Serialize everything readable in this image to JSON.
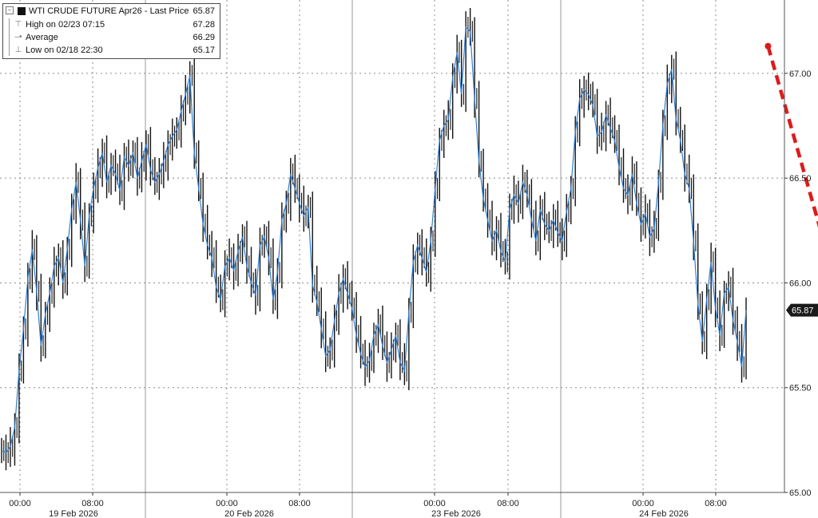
{
  "legend": {
    "title": "WTI CRUDE FUTURE Apr26 - Last Price",
    "last": "65.87",
    "rows": [
      {
        "label": "High on 02/23 07:15",
        "value": "67.28",
        "icon": "high-marker-icon"
      },
      {
        "label": "Average",
        "value": "66.29",
        "icon": "average-marker-icon"
      },
      {
        "label": "Low on 02/18 22:30",
        "value": "65.17",
        "icon": "low-marker-icon"
      }
    ]
  },
  "colors": {
    "candle": "#111111",
    "line": "#2e7fd6",
    "arrow": "#dd1b1b",
    "grid": "#8c8c8c",
    "label_bg": "#1a1a1a"
  },
  "chart_data": {
    "type": "line",
    "title": "WTI CRUDE FUTURE Apr26 - Last Price",
    "ylim": [
      65.0,
      67.35
    ],
    "yticks": [
      65.0,
      65.5,
      66.0,
      66.5,
      67.0
    ],
    "ytick_labels": [
      "65.00",
      "65.50",
      "66.00",
      "66.50",
      "67.00"
    ],
    "last_price_label": "65.87",
    "x_time_labels": [
      "00:00",
      "08:00",
      "00:00",
      "08:00",
      "00:00",
      "08:00",
      "00:00",
      "08:00"
    ],
    "x_date_labels": [
      "19 Feb 2026",
      "20 Feb 2026",
      "23 Feb 2026",
      "24 Feb 2026"
    ],
    "series": [
      {
        "values": [
          65.2,
          65.19,
          65.22,
          65.31,
          65.58,
          65.78,
          66.02,
          66.16,
          65.96,
          65.7,
          65.85,
          65.95,
          66.08,
          66.12,
          66.0,
          66.16,
          66.35,
          66.48,
          66.3,
          66.08,
          66.32,
          66.45,
          66.55,
          66.62,
          66.48,
          66.56,
          66.52,
          66.44,
          66.6,
          66.56,
          66.62,
          66.5,
          66.58,
          66.66,
          66.54,
          66.48,
          66.52,
          66.58,
          66.66,
          66.7,
          66.73,
          66.82,
          66.9,
          66.99,
          66.62,
          66.45,
          66.28,
          66.18,
          66.12,
          65.98,
          65.92,
          66.08,
          66.12,
          66.06,
          66.15,
          66.22,
          66.08,
          66.0,
          65.94,
          66.18,
          66.22,
          66.12,
          65.92,
          66.05,
          66.3,
          66.38,
          66.52,
          66.45,
          66.38,
          66.32,
          66.36,
          65.99,
          65.91,
          65.78,
          65.65,
          65.68,
          65.82,
          65.95,
          66.02,
          65.95,
          65.88,
          65.75,
          65.66,
          65.6,
          65.63,
          65.75,
          65.8,
          65.7,
          65.62,
          65.68,
          65.75,
          65.62,
          65.58,
          65.86,
          66.1,
          66.18,
          66.12,
          66.05,
          66.2,
          66.45,
          66.68,
          66.75,
          66.78,
          66.98,
          67.1,
          66.9,
          67.22,
          67.2,
          66.88,
          66.58,
          66.4,
          66.3,
          66.2,
          66.25,
          66.15,
          66.1,
          66.35,
          66.42,
          66.38,
          66.48,
          66.42,
          66.3,
          66.2,
          66.35,
          66.28,
          66.25,
          66.3,
          66.24,
          66.2,
          66.34,
          66.45,
          66.72,
          66.88,
          66.92,
          66.9,
          66.85,
          66.7,
          66.72,
          66.8,
          66.74,
          66.68,
          66.55,
          66.45,
          66.42,
          66.52,
          66.38,
          66.28,
          66.33,
          66.22,
          66.26,
          66.48,
          66.75,
          66.95,
          67.02,
          66.78,
          66.68,
          66.52,
          66.45,
          66.2,
          65.9,
          65.72,
          65.92,
          66.1,
          65.88,
          65.75,
          65.95,
          65.98,
          65.82,
          65.72,
          65.6,
          65.87
        ]
      }
    ],
    "annotation": {
      "type": "arrow",
      "from": [
        175,
        67.13
      ],
      "to": [
        193,
        65.6
      ]
    }
  }
}
